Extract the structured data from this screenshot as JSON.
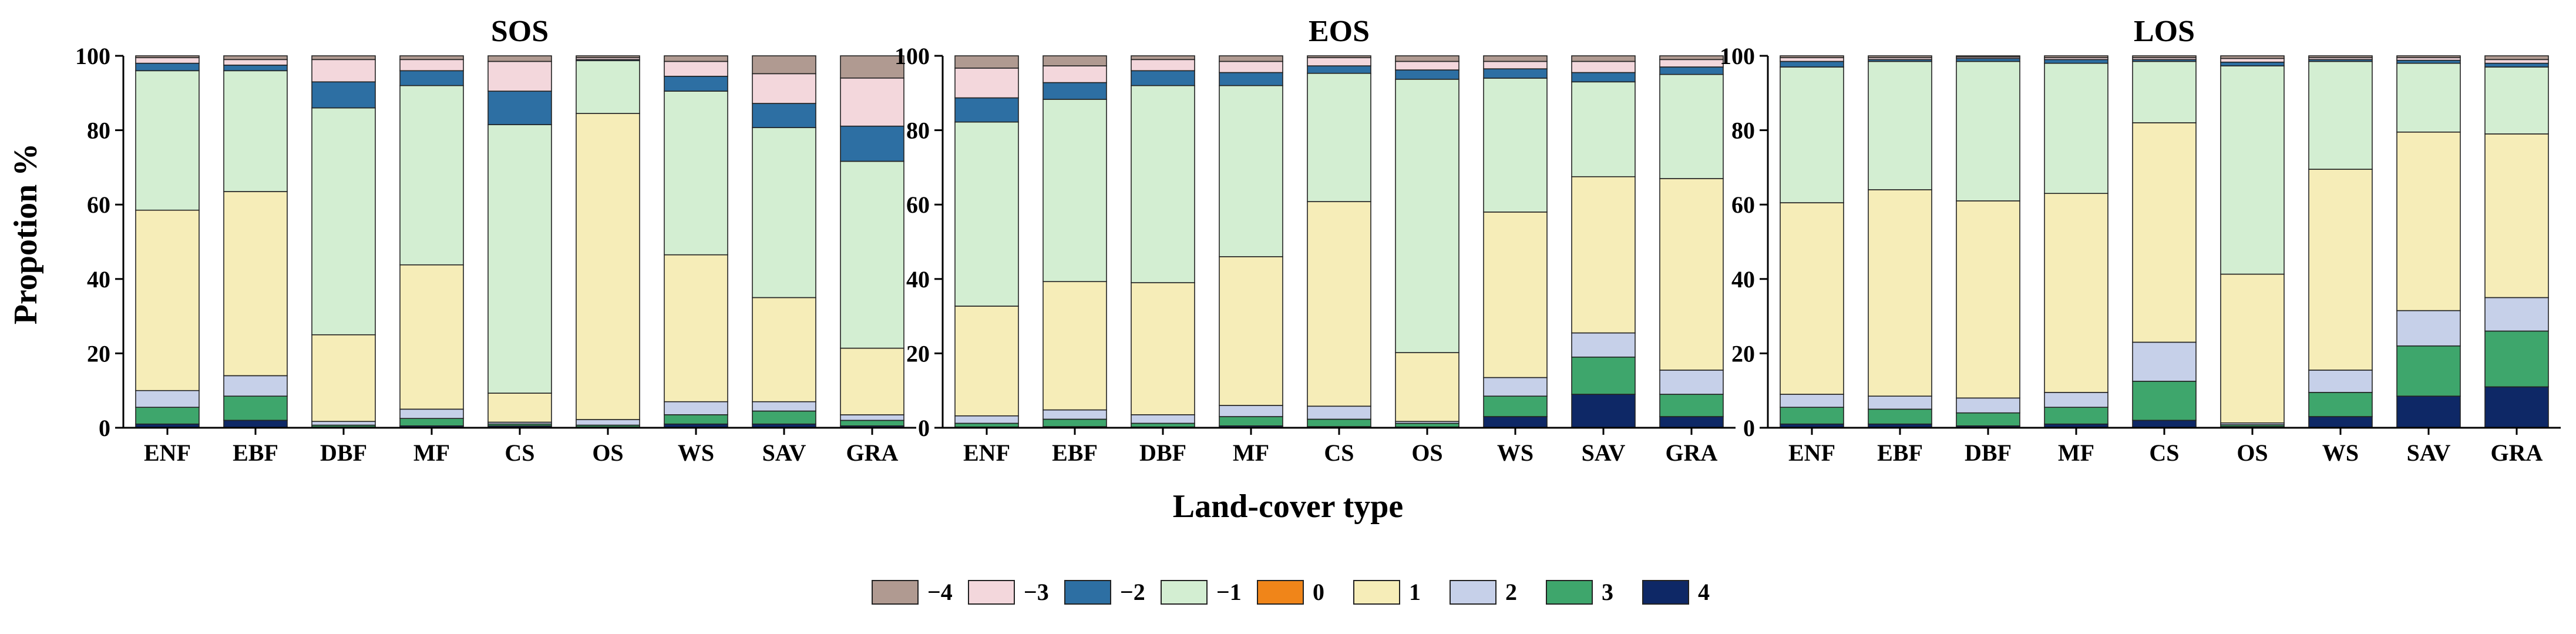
{
  "figure": {
    "xlabel": "Land-cover type",
    "ylabel": "Propotion %"
  },
  "legend": {
    "placement": "bottom-center",
    "items": [
      {
        "label": "−4",
        "color": "#b09a91"
      },
      {
        "label": "−3",
        "color": "#f3d7dc"
      },
      {
        "label": "−2",
        "color": "#2d6fa3"
      },
      {
        "label": "−1",
        "color": "#d3eed2"
      },
      {
        "label": "0",
        "color": "#f08519"
      },
      {
        "label": "1",
        "color": "#f6edb8"
      },
      {
        "label": "2",
        "color": "#c6d0e9"
      },
      {
        "label": "3",
        "color": "#3ea66c"
      },
      {
        "label": "4",
        "color": "#0e2866"
      }
    ]
  },
  "chart_data": [
    {
      "type": "bar",
      "stacked": true,
      "title": "SOS",
      "ylim": [
        0,
        100
      ],
      "yticks": [
        "0",
        "20",
        "40",
        "60",
        "80",
        "100"
      ],
      "categories": [
        "ENF",
        "EBF",
        "DBF",
        "MF",
        "CS",
        "OS",
        "WS",
        "SAV",
        "GRA"
      ],
      "series": [
        {
          "name": "4",
          "values": [
            1.0,
            2.0,
            0.2,
            0.5,
            0.5,
            0.2,
            1.0,
            1.0,
            0.5
          ]
        },
        {
          "name": "3",
          "values": [
            4.5,
            6.5,
            0.5,
            2.0,
            0.5,
            0.5,
            2.5,
            3.5,
            1.5
          ]
        },
        {
          "name": "2",
          "values": [
            4.5,
            5.5,
            1.0,
            2.5,
            0.5,
            1.5,
            3.5,
            2.5,
            1.5
          ]
        },
        {
          "name": "1",
          "values": [
            48.5,
            49.5,
            23.3,
            38.8,
            7.8,
            82.3,
            39.5,
            28.0,
            18.0
          ]
        },
        {
          "name": "0",
          "values": [
            0,
            0,
            0,
            0,
            0,
            0,
            0,
            0,
            0
          ]
        },
        {
          "name": "−1",
          "values": [
            37.5,
            32.5,
            61.0,
            48.2,
            72.2,
            14.2,
            44.0,
            45.7,
            50.5
          ]
        },
        {
          "name": "−2",
          "values": [
            2.0,
            1.5,
            7.0,
            4.0,
            9.0,
            0.3,
            4.0,
            6.5,
            9.5
          ]
        },
        {
          "name": "−3",
          "values": [
            1.5,
            1.5,
            6.0,
            3.0,
            8.0,
            0.5,
            4.0,
            8.0,
            13.0
          ]
        },
        {
          "name": "−4",
          "values": [
            0.5,
            1.0,
            1.0,
            1.0,
            1.5,
            0.5,
            1.5,
            4.8,
            6.0
          ]
        }
      ]
    },
    {
      "type": "bar",
      "stacked": true,
      "title": "EOS",
      "ylim": [
        0,
        100
      ],
      "yticks": [
        "0",
        "20",
        "40",
        "60",
        "80",
        "100"
      ],
      "categories": [
        "ENF",
        "EBF",
        "DBF",
        "MF",
        "CS",
        "OS",
        "WS",
        "SAV",
        "GRA"
      ],
      "series": [
        {
          "name": "4",
          "values": [
            0.2,
            0.3,
            0.2,
            0.5,
            0.3,
            0.2,
            3.0,
            9.0,
            3.0
          ]
        },
        {
          "name": "3",
          "values": [
            1.0,
            2.0,
            1.0,
            2.5,
            2.0,
            1.0,
            5.5,
            10.0,
            6.0
          ]
        },
        {
          "name": "2",
          "values": [
            2.0,
            2.5,
            2.3,
            3.0,
            3.5,
            0.5,
            5.0,
            6.5,
            6.5
          ]
        },
        {
          "name": "1",
          "values": [
            29.5,
            34.5,
            35.5,
            40.0,
            55.0,
            18.5,
            44.5,
            42.0,
            51.5
          ]
        },
        {
          "name": "0",
          "values": [
            0,
            0,
            0,
            0,
            0,
            0,
            0,
            0,
            0
          ]
        },
        {
          "name": "−1",
          "values": [
            49.5,
            49.0,
            53.0,
            46.0,
            34.5,
            73.5,
            36.0,
            25.5,
            28.0
          ]
        },
        {
          "name": "−2",
          "values": [
            6.5,
            4.5,
            4.0,
            3.5,
            2.0,
            2.5,
            2.5,
            2.5,
            2.0
          ]
        },
        {
          "name": "−3",
          "values": [
            8.0,
            4.5,
            3.0,
            3.0,
            2.2,
            2.3,
            2.0,
            3.0,
            2.0
          ]
        },
        {
          "name": "−4",
          "values": [
            3.3,
            2.7,
            1.0,
            1.5,
            0.5,
            1.5,
            1.5,
            1.5,
            1.0
          ]
        }
      ]
    },
    {
      "type": "bar",
      "stacked": true,
      "title": "LOS",
      "ylim": [
        0,
        100
      ],
      "yticks": [
        "0",
        "20",
        "40",
        "60",
        "80",
        "100"
      ],
      "categories": [
        "ENF",
        "EBF",
        "DBF",
        "MF",
        "CS",
        "OS",
        "WS",
        "SAV",
        "GRA"
      ],
      "series": [
        {
          "name": "4",
          "values": [
            1.0,
            1.0,
            0.5,
            1.0,
            2.0,
            0.3,
            3.0,
            8.5,
            11.0
          ]
        },
        {
          "name": "3",
          "values": [
            4.5,
            4.0,
            3.5,
            4.5,
            10.5,
            0.5,
            6.5,
            13.5,
            15.0
          ]
        },
        {
          "name": "2",
          "values": [
            3.5,
            3.5,
            4.0,
            4.0,
            10.5,
            0.5,
            6.0,
            9.5,
            9.0
          ]
        },
        {
          "name": "1",
          "values": [
            51.5,
            55.5,
            53.0,
            53.5,
            59.0,
            40.0,
            54.0,
            48.0,
            44.0
          ]
        },
        {
          "name": "0",
          "values": [
            0,
            0,
            0,
            0,
            0,
            0,
            0,
            0,
            0
          ]
        },
        {
          "name": "−1",
          "values": [
            36.5,
            34.5,
            37.5,
            35.0,
            16.5,
            56.0,
            29.0,
            18.5,
            18.0
          ]
        },
        {
          "name": "−2",
          "values": [
            1.5,
            0.5,
            0.8,
            1.0,
            0.5,
            1.0,
            0.5,
            0.8,
            1.0
          ]
        },
        {
          "name": "−3",
          "values": [
            1.0,
            0.5,
            0.4,
            0.5,
            0.5,
            1.0,
            0.5,
            0.7,
            1.0
          ]
        },
        {
          "name": "−4",
          "values": [
            0.5,
            0.5,
            0.3,
            0.5,
            0.5,
            0.7,
            0.5,
            0.5,
            1.0
          ]
        }
      ]
    }
  ]
}
